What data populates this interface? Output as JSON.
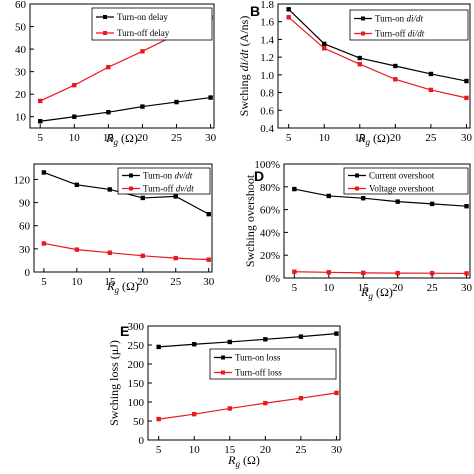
{
  "chart_data": [
    {
      "id": "A",
      "type": "line",
      "panel_letter": "",
      "x": [
        5,
        10,
        15,
        20,
        25,
        30
      ],
      "xlabel": "R_g (Ω)",
      "ylabel": "",
      "xlim": [
        3.5,
        30.5
      ],
      "ylim": [
        5,
        60
      ],
      "yticks": [
        10,
        20,
        30,
        40,
        50,
        60
      ],
      "ytick_labels": [
        "10",
        "20",
        "30",
        "40",
        "50",
        "60"
      ],
      "series": [
        {
          "name": "Turn-on delay",
          "color": "#000000",
          "values": [
            8,
            10,
            12,
            14.5,
            16.5,
            18.5
          ]
        },
        {
          "name": "Turn-off delay",
          "color": "#e8191c",
          "values": [
            17,
            24,
            32,
            39,
            46.5,
            54
          ]
        }
      ],
      "legend": "top-left"
    },
    {
      "id": "B",
      "type": "line",
      "panel_letter": "B",
      "x": [
        5,
        10,
        15,
        20,
        25,
        30
      ],
      "xlabel": "R_g (Ω)",
      "ylabel": "Swching di/dt (A/ns)",
      "xlim": [
        3.5,
        30.5
      ],
      "ylim": [
        0.4,
        1.8
      ],
      "yticks": [
        0.4,
        0.6,
        0.8,
        1.0,
        1.2,
        1.4,
        1.6,
        1.8
      ],
      "ytick_labels": [
        "0.4",
        "0.6",
        "0.8",
        "1.0",
        "1.2",
        "1.4",
        "1.6",
        "1.8"
      ],
      "series": [
        {
          "name": "Turn-on di/dt",
          "color": "#000000",
          "values": [
            1.74,
            1.35,
            1.19,
            1.1,
            1.01,
            0.93
          ]
        },
        {
          "name": "Turn-off di/dt",
          "color": "#e8191c",
          "values": [
            1.65,
            1.3,
            1.12,
            0.95,
            0.83,
            0.74
          ]
        }
      ],
      "legend": "top-right"
    },
    {
      "id": "C",
      "type": "line",
      "panel_letter": "",
      "x": [
        5,
        10,
        15,
        20,
        25,
        30
      ],
      "xlabel": "R_g (Ω)",
      "ylabel": "",
      "xlim": [
        3.5,
        30.5
      ],
      "ylim": [
        0,
        140
      ],
      "yticks": [
        0,
        30,
        60,
        90,
        120
      ],
      "ytick_labels": [
        "0",
        "30",
        "60",
        "90",
        "120"
      ],
      "series": [
        {
          "name": "Turn-on dv/dt",
          "color": "#000000",
          "values": [
            129,
            113,
            107,
            96,
            98,
            75
          ]
        },
        {
          "name": "Turn-off dv/dt",
          "color": "#e8191c",
          "values": [
            37,
            29,
            25,
            21,
            18,
            16
          ]
        }
      ],
      "legend": "top-right"
    },
    {
      "id": "D",
      "type": "line",
      "panel_letter": "D",
      "x": [
        5,
        10,
        15,
        20,
        25,
        30
      ],
      "xlabel": "R_g (Ω)",
      "ylabel": "Swching overshoot",
      "xlim": [
        3.5,
        30.5
      ],
      "ylim": [
        0,
        100
      ],
      "yticks": [
        0,
        20,
        40,
        60,
        80,
        100
      ],
      "ytick_labels": [
        "0%",
        "20%",
        "40%",
        "60%",
        "80%",
        "100%"
      ],
      "series": [
        {
          "name": "Current overshoot",
          "color": "#000000",
          "values": [
            78,
            72,
            70,
            67,
            65,
            63
          ]
        },
        {
          "name": "Voltage overshoot",
          "color": "#e8191c",
          "values": [
            5.5,
            5,
            4.5,
            4.3,
            4.2,
            4
          ]
        }
      ],
      "legend": "top-right"
    },
    {
      "id": "E",
      "type": "line",
      "panel_letter": "E",
      "x": [
        5,
        10,
        15,
        20,
        25,
        30
      ],
      "xlabel": "R_g (Ω)",
      "ylabel": "Swching loss (μJ)",
      "xlim": [
        3.5,
        30.5
      ],
      "ylim": [
        0,
        300
      ],
      "yticks": [
        0,
        50,
        100,
        150,
        200,
        250,
        300
      ],
      "ytick_labels": [
        "0",
        "50",
        "100",
        "150",
        "200",
        "250",
        "300"
      ],
      "series": [
        {
          "name": "Turn-on loss",
          "color": "#000000",
          "values": [
            245,
            252,
            258,
            265,
            272,
            280
          ]
        },
        {
          "name": "Turn-off loss",
          "color": "#e8191c",
          "values": [
            55,
            68,
            83,
            97,
            110,
            124
          ]
        }
      ],
      "legend": "top-left"
    }
  ]
}
